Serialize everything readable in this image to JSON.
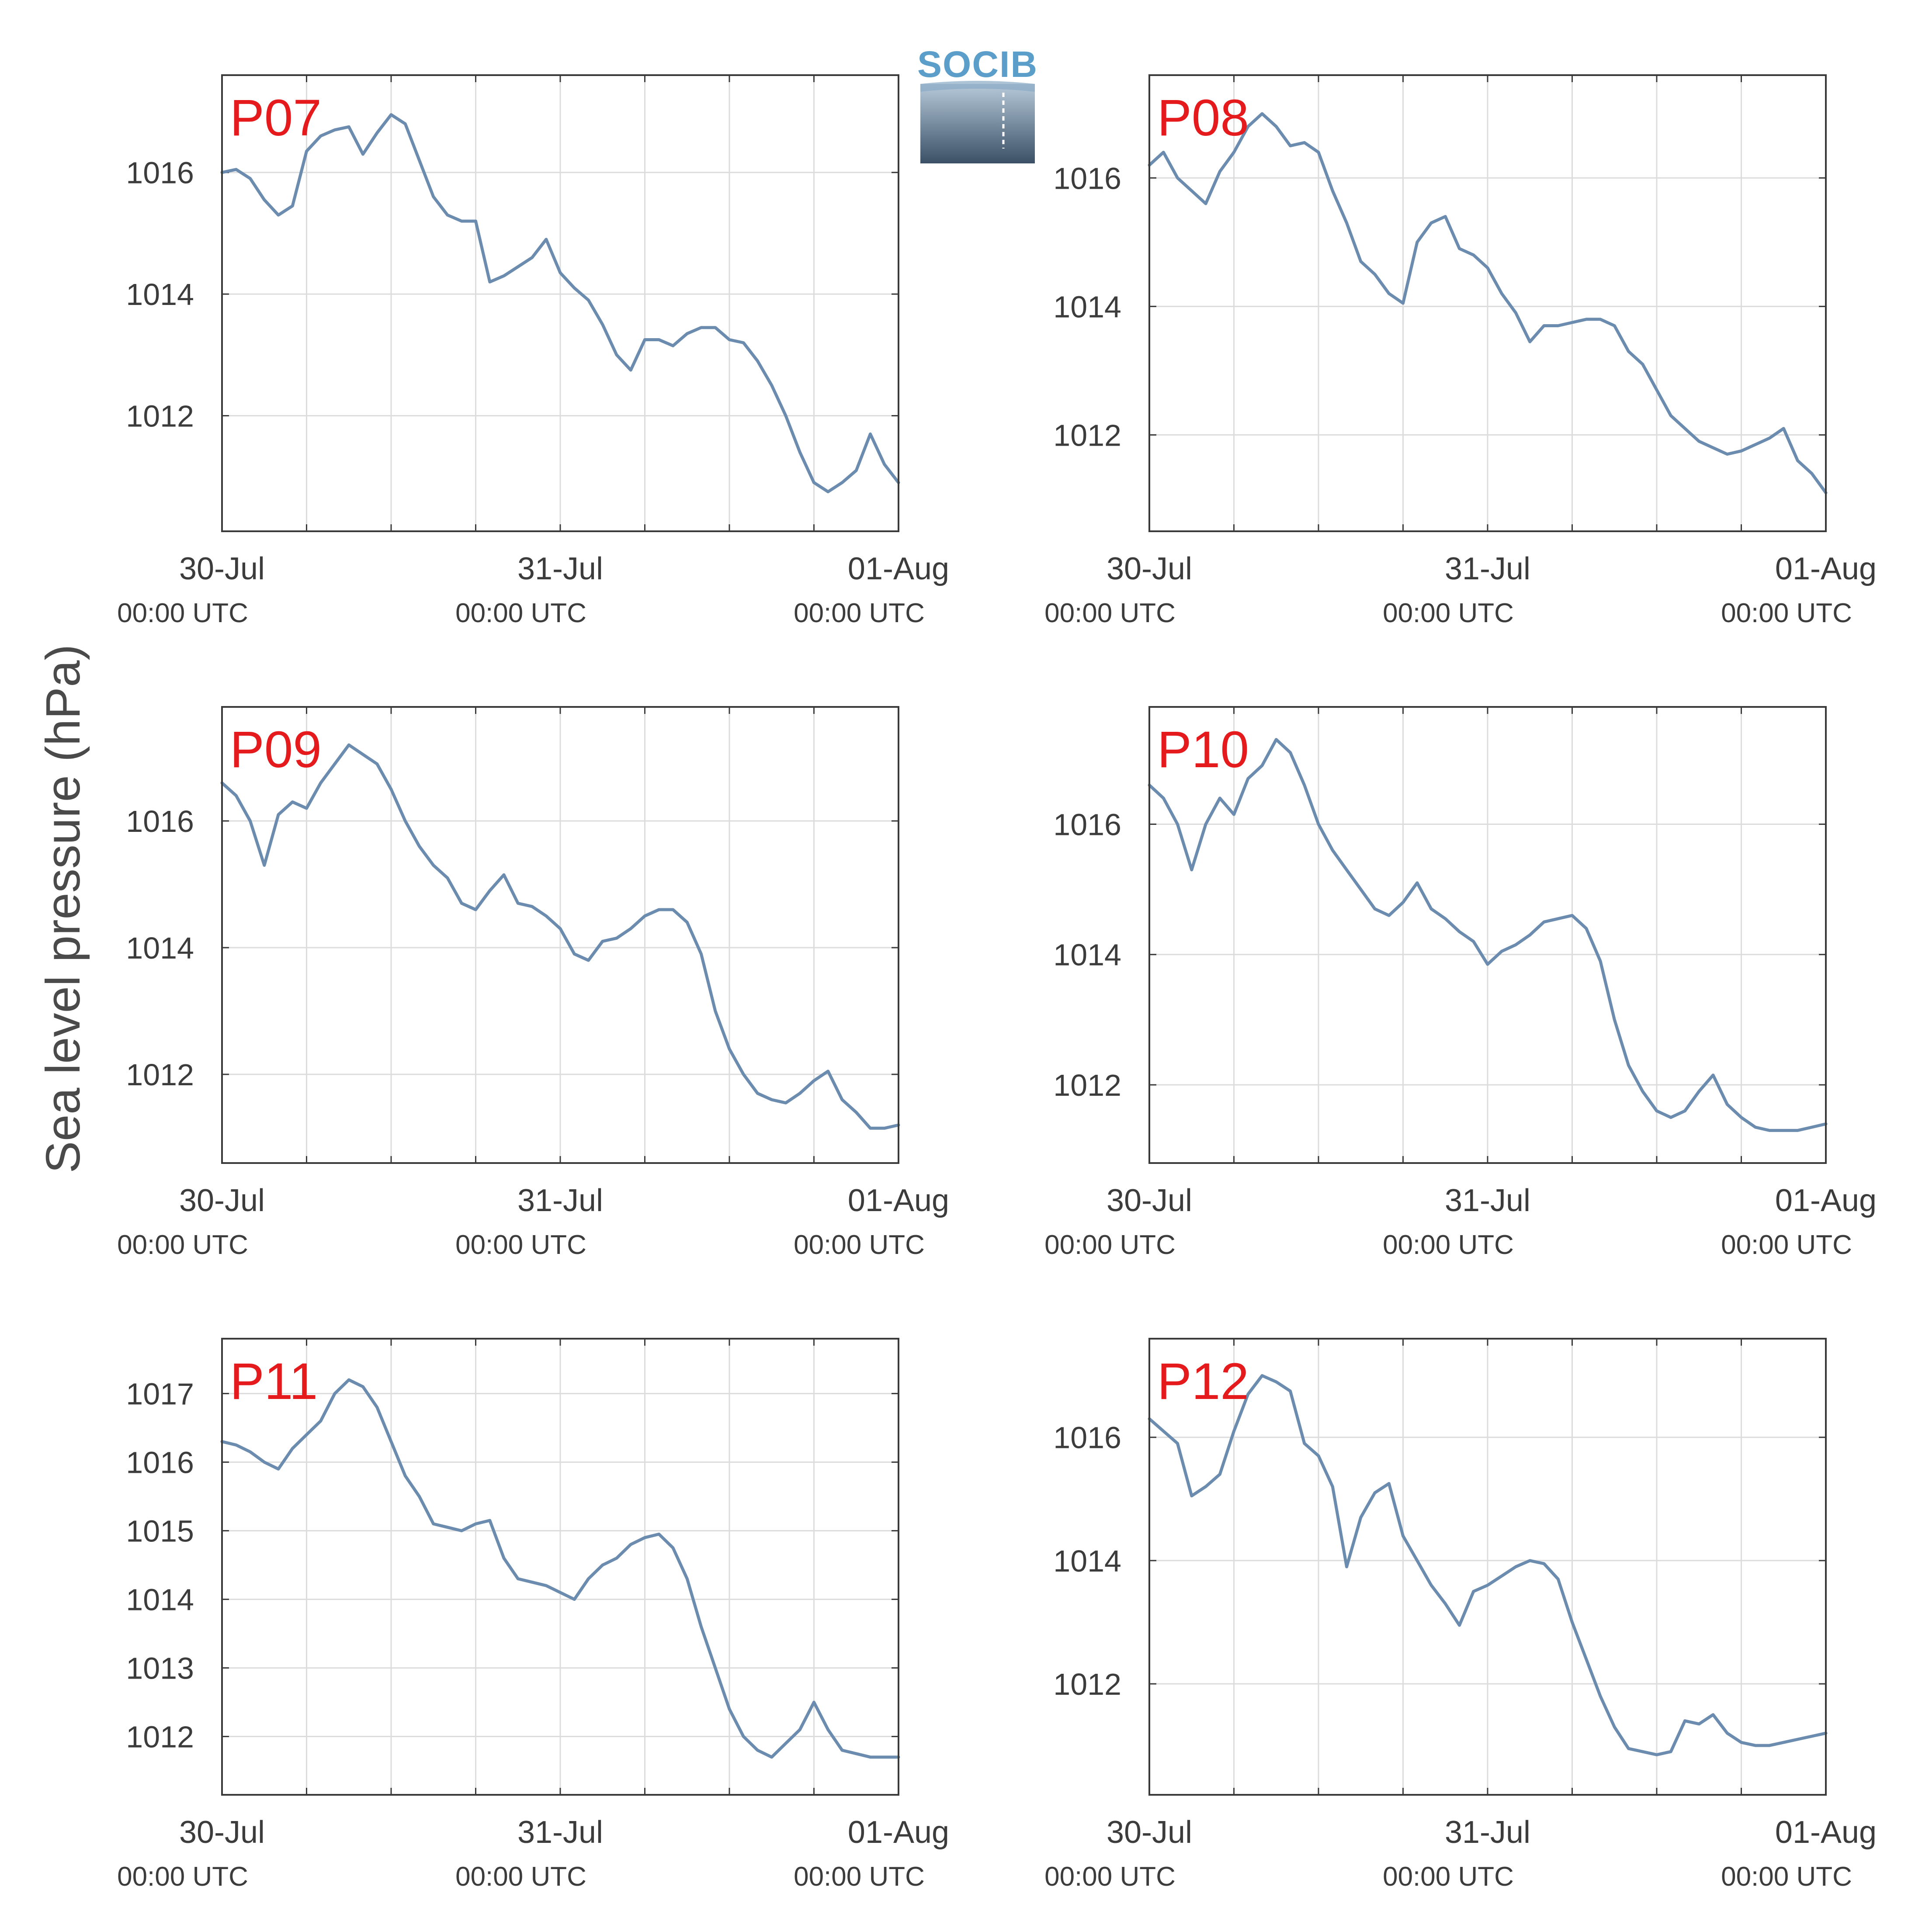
{
  "ylabel": "Sea level pressure (hPa)",
  "logo": {
    "text": "SOCIB",
    "color": "#5b9ec9"
  },
  "colors": {
    "line": "#6b8cae",
    "label": "#e41a1c",
    "grid": "#dcdcdc",
    "axis": "#3a3a3a"
  },
  "chart_data": [
    {
      "type": "line",
      "title": "P07",
      "x_range_hours": [
        0,
        48
      ],
      "xticks": [
        {
          "date": "30-Jul",
          "time": "00:00 UTC"
        },
        {
          "date": "31-Jul",
          "time": "00:00 UTC"
        },
        {
          "date": "01-Aug",
          "time": "00:00 UTC"
        }
      ],
      "ylim": [
        1010.1,
        1017.6
      ],
      "yticks": [
        1012,
        1014,
        1016
      ],
      "grid": true,
      "series": [
        {
          "hours": [
            0,
            1,
            2,
            3,
            4,
            5,
            6,
            7,
            8,
            9,
            10,
            11,
            12,
            13,
            14,
            15,
            16,
            17,
            18,
            19,
            20,
            21,
            22,
            23,
            24,
            25,
            26,
            27,
            28,
            29,
            30,
            31,
            32,
            33,
            34,
            35,
            36,
            37,
            38,
            39,
            40,
            41,
            42,
            43,
            44,
            45,
            46,
            47,
            48
          ],
          "values": [
            1016.0,
            1016.05,
            1015.9,
            1015.55,
            1015.3,
            1015.45,
            1016.35,
            1016.6,
            1016.7,
            1016.75,
            1016.3,
            1016.65,
            1016.95,
            1016.8,
            1016.2,
            1015.6,
            1015.3,
            1015.2,
            1015.2,
            1014.2,
            1014.3,
            1014.45,
            1014.6,
            1014.9,
            1014.35,
            1014.1,
            1013.9,
            1013.5,
            1013.0,
            1012.75,
            1013.25,
            1013.25,
            1013.15,
            1013.35,
            1013.45,
            1013.45,
            1013.25,
            1013.2,
            1012.9,
            1012.5,
            1012.0,
            1011.4,
            1010.9,
            1010.75,
            1010.9,
            1011.1,
            1011.7,
            1011.2,
            1010.9
          ]
        }
      ]
    },
    {
      "type": "line",
      "title": "P08",
      "x_range_hours": [
        0,
        48
      ],
      "xticks": [
        {
          "date": "30-Jul",
          "time": "00:00 UTC"
        },
        {
          "date": "31-Jul",
          "time": "00:00 UTC"
        },
        {
          "date": "01-Aug",
          "time": "00:00 UTC"
        }
      ],
      "ylim": [
        1010.5,
        1017.6
      ],
      "yticks": [
        1012,
        1014,
        1016
      ],
      "grid": true,
      "series": [
        {
          "hours": [
            0,
            1,
            2,
            3,
            4,
            5,
            6,
            7,
            8,
            9,
            10,
            11,
            12,
            13,
            14,
            15,
            16,
            17,
            18,
            19,
            20,
            21,
            22,
            23,
            24,
            25,
            26,
            27,
            28,
            29,
            30,
            31,
            32,
            33,
            34,
            35,
            36,
            37,
            38,
            39,
            40,
            41,
            42,
            43,
            44,
            45,
            46,
            47,
            48
          ],
          "values": [
            1016.2,
            1016.4,
            1016.0,
            1015.8,
            1015.6,
            1016.1,
            1016.4,
            1016.8,
            1017.0,
            1016.8,
            1016.5,
            1016.55,
            1016.4,
            1015.8,
            1015.3,
            1014.7,
            1014.5,
            1014.2,
            1014.05,
            1015.0,
            1015.3,
            1015.4,
            1014.9,
            1014.8,
            1014.6,
            1014.2,
            1013.9,
            1013.45,
            1013.7,
            1013.7,
            1013.75,
            1013.8,
            1013.8,
            1013.7,
            1013.3,
            1013.1,
            1012.7,
            1012.3,
            1012.1,
            1011.9,
            1011.8,
            1011.7,
            1011.75,
            1011.85,
            1011.95,
            1012.1,
            1011.6,
            1011.4,
            1011.1
          ]
        }
      ]
    },
    {
      "type": "line",
      "title": "P09",
      "x_range_hours": [
        0,
        48
      ],
      "xticks": [
        {
          "date": "30-Jul",
          "time": "00:00 UTC"
        },
        {
          "date": "31-Jul",
          "time": "00:00 UTC"
        },
        {
          "date": "01-Aug",
          "time": "00:00 UTC"
        }
      ],
      "ylim": [
        1010.6,
        1017.8
      ],
      "yticks": [
        1012,
        1014,
        1016
      ],
      "grid": true,
      "series": [
        {
          "hours": [
            0,
            1,
            2,
            3,
            4,
            5,
            6,
            7,
            8,
            9,
            10,
            11,
            12,
            13,
            14,
            15,
            16,
            17,
            18,
            19,
            20,
            21,
            22,
            23,
            24,
            25,
            26,
            27,
            28,
            29,
            30,
            31,
            32,
            33,
            34,
            35,
            36,
            37,
            38,
            39,
            40,
            41,
            42,
            43,
            44,
            45,
            46,
            47,
            48
          ],
          "values": [
            1016.6,
            1016.4,
            1016.0,
            1015.3,
            1016.1,
            1016.3,
            1016.2,
            1016.6,
            1016.9,
            1017.2,
            1017.05,
            1016.9,
            1016.5,
            1016.0,
            1015.6,
            1015.3,
            1015.1,
            1014.7,
            1014.6,
            1014.9,
            1015.15,
            1014.7,
            1014.65,
            1014.5,
            1014.3,
            1013.9,
            1013.8,
            1014.1,
            1014.15,
            1014.3,
            1014.5,
            1014.6,
            1014.6,
            1014.4,
            1013.9,
            1013.0,
            1012.4,
            1012.0,
            1011.7,
            1011.6,
            1011.55,
            1011.7,
            1011.9,
            1012.05,
            1011.6,
            1011.4,
            1011.15,
            1011.15,
            1011.2
          ]
        }
      ]
    },
    {
      "type": "line",
      "title": "P10",
      "x_range_hours": [
        0,
        48
      ],
      "xticks": [
        {
          "date": "30-Jul",
          "time": "00:00 UTC"
        },
        {
          "date": "31-Jul",
          "time": "00:00 UTC"
        },
        {
          "date": "01-Aug",
          "time": "00:00 UTC"
        }
      ],
      "ylim": [
        1010.8,
        1017.8
      ],
      "yticks": [
        1012,
        1014,
        1016
      ],
      "grid": true,
      "series": [
        {
          "hours": [
            0,
            1,
            2,
            3,
            4,
            5,
            6,
            7,
            8,
            9,
            10,
            11,
            12,
            13,
            14,
            15,
            16,
            17,
            18,
            19,
            20,
            21,
            22,
            23,
            24,
            25,
            26,
            27,
            28,
            29,
            30,
            31,
            32,
            33,
            34,
            35,
            36,
            37,
            38,
            39,
            40,
            41,
            42,
            43,
            44,
            45,
            46,
            47,
            48
          ],
          "values": [
            1016.6,
            1016.4,
            1016.0,
            1015.3,
            1016.0,
            1016.4,
            1016.15,
            1016.7,
            1016.9,
            1017.3,
            1017.1,
            1016.6,
            1016.0,
            1015.6,
            1015.3,
            1015.0,
            1014.7,
            1014.6,
            1014.8,
            1015.1,
            1014.7,
            1014.55,
            1014.35,
            1014.2,
            1013.85,
            1014.05,
            1014.15,
            1014.3,
            1014.5,
            1014.55,
            1014.6,
            1014.4,
            1013.9,
            1013.0,
            1012.3,
            1011.9,
            1011.6,
            1011.5,
            1011.6,
            1011.9,
            1012.15,
            1011.7,
            1011.5,
            1011.35,
            1011.3,
            1011.3,
            1011.3,
            1011.35,
            1011.4
          ]
        }
      ]
    },
    {
      "type": "line",
      "title": "P11",
      "x_range_hours": [
        0,
        48
      ],
      "xticks": [
        {
          "date": "30-Jul",
          "time": "00:00 UTC"
        },
        {
          "date": "31-Jul",
          "time": "00:00 UTC"
        },
        {
          "date": "01-Aug",
          "time": "00:00 UTC"
        }
      ],
      "ylim": [
        1011.15,
        1017.8
      ],
      "yticks": [
        1012,
        1013,
        1014,
        1015,
        1016,
        1017
      ],
      "grid": true,
      "series": [
        {
          "hours": [
            0,
            1,
            2,
            3,
            4,
            5,
            6,
            7,
            8,
            9,
            10,
            11,
            12,
            13,
            14,
            15,
            16,
            17,
            18,
            19,
            20,
            21,
            22,
            23,
            24,
            25,
            26,
            27,
            28,
            29,
            30,
            31,
            32,
            33,
            34,
            35,
            36,
            37,
            38,
            39,
            40,
            41,
            42,
            43,
            44,
            45,
            46,
            47,
            48
          ],
          "values": [
            1016.3,
            1016.25,
            1016.15,
            1016.0,
            1015.9,
            1016.2,
            1016.4,
            1016.6,
            1017.0,
            1017.2,
            1017.1,
            1016.8,
            1016.3,
            1015.8,
            1015.5,
            1015.1,
            1015.05,
            1015.0,
            1015.1,
            1015.15,
            1014.6,
            1014.3,
            1014.25,
            1014.2,
            1014.1,
            1014.0,
            1014.3,
            1014.5,
            1014.6,
            1014.8,
            1014.9,
            1014.95,
            1014.75,
            1014.3,
            1013.6,
            1013.0,
            1012.4,
            1012.0,
            1011.8,
            1011.7,
            1011.9,
            1012.1,
            1012.5,
            1012.1,
            1011.8,
            1011.75,
            1011.7,
            1011.7,
            1011.7
          ]
        }
      ]
    },
    {
      "type": "line",
      "title": "P12",
      "x_range_hours": [
        0,
        48
      ],
      "xticks": [
        {
          "date": "30-Jul",
          "time": "00:00 UTC"
        },
        {
          "date": "31-Jul",
          "time": "00:00 UTC"
        },
        {
          "date": "01-Aug",
          "time": "00:00 UTC"
        }
      ],
      "ylim": [
        1010.2,
        1017.6
      ],
      "yticks": [
        1012,
        1014,
        1016
      ],
      "grid": true,
      "series": [
        {
          "hours": [
            0,
            1,
            2,
            3,
            4,
            5,
            6,
            7,
            8,
            9,
            10,
            11,
            12,
            13,
            14,
            15,
            16,
            17,
            18,
            19,
            20,
            21,
            22,
            23,
            24,
            25,
            26,
            27,
            28,
            29,
            30,
            31,
            32,
            33,
            34,
            35,
            36,
            37,
            38,
            39,
            40,
            41,
            42,
            43,
            44,
            45,
            46,
            47,
            48
          ],
          "values": [
            1016.3,
            1016.1,
            1015.9,
            1015.05,
            1015.2,
            1015.4,
            1016.1,
            1016.7,
            1017.0,
            1016.9,
            1016.75,
            1015.9,
            1015.7,
            1015.2,
            1013.9,
            1014.7,
            1015.1,
            1015.25,
            1014.4,
            1014.0,
            1013.6,
            1013.3,
            1012.95,
            1013.5,
            1013.6,
            1013.75,
            1013.9,
            1014.0,
            1013.95,
            1013.7,
            1013.0,
            1012.4,
            1011.8,
            1011.3,
            1010.95,
            1010.9,
            1010.85,
            1010.9,
            1011.4,
            1011.35,
            1011.5,
            1011.2,
            1011.05,
            1011.0,
            1011.0,
            1011.05,
            1011.1,
            1011.15,
            1011.2
          ]
        }
      ]
    }
  ]
}
